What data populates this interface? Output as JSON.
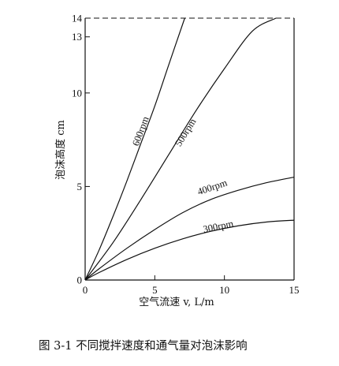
{
  "chart_data": {
    "type": "line",
    "title": "",
    "xlabel": "空气流速 v, L/m",
    "ylabel": "泡沫高度 cm",
    "xlim": [
      0,
      15
    ],
    "ylim": [
      0,
      14
    ],
    "x_ticks": [
      {
        "value": 0,
        "label": "0"
      },
      {
        "value": 5,
        "label": "5"
      },
      {
        "value": 10,
        "label": "10"
      },
      {
        "value": 15,
        "label": "15"
      }
    ],
    "y_ticks": [
      {
        "value": 5,
        "label": "5"
      },
      {
        "value": 10,
        "label": "10"
      },
      {
        "value": 13,
        "label": "13"
      },
      {
        "value": 14,
        "label": "14"
      }
    ],
    "grid": false,
    "legend": "none",
    "top_border_dashed": true,
    "series": [
      {
        "name": "600rpm",
        "label": "600rpm",
        "label_at": [
          4.2,
          7.9
        ],
        "points": [
          [
            0,
            0
          ],
          [
            1,
            1.6
          ],
          [
            2,
            3.4
          ],
          [
            3,
            5.3
          ],
          [
            4,
            7.3
          ],
          [
            5,
            9.3
          ],
          [
            6,
            11.5
          ],
          [
            7.15,
            14
          ]
        ]
      },
      {
        "name": "500rpm",
        "label": "500rpm",
        "label_at": [
          7.4,
          7.8
        ],
        "points": [
          [
            0,
            0
          ],
          [
            2,
            2.0
          ],
          [
            4,
            4.3
          ],
          [
            6,
            6.7
          ],
          [
            8,
            9.1
          ],
          [
            10,
            11.3
          ],
          [
            12,
            13.3
          ],
          [
            13.7,
            14
          ]
        ]
      },
      {
        "name": "400rpm",
        "label": "400rpm",
        "label_at": [
          9.2,
          4.8
        ],
        "points": [
          [
            0,
            0
          ],
          [
            1,
            0.6
          ],
          [
            3,
            1.7
          ],
          [
            5,
            2.7
          ],
          [
            7,
            3.6
          ],
          [
            9,
            4.3
          ],
          [
            11,
            4.8
          ],
          [
            13,
            5.2
          ],
          [
            15,
            5.5
          ]
        ]
      },
      {
        "name": "300rpm",
        "label": "300rpm",
        "label_at": [
          9.6,
          2.7
        ],
        "points": [
          [
            0,
            0
          ],
          [
            1,
            0.4
          ],
          [
            3,
            1.1
          ],
          [
            5,
            1.7
          ],
          [
            7,
            2.2
          ],
          [
            9,
            2.6
          ],
          [
            11,
            2.9
          ],
          [
            13,
            3.1
          ],
          [
            15,
            3.2
          ]
        ]
      }
    ]
  },
  "caption": "图 3-1 不同搅拌速度和通气量对泡沫影响"
}
